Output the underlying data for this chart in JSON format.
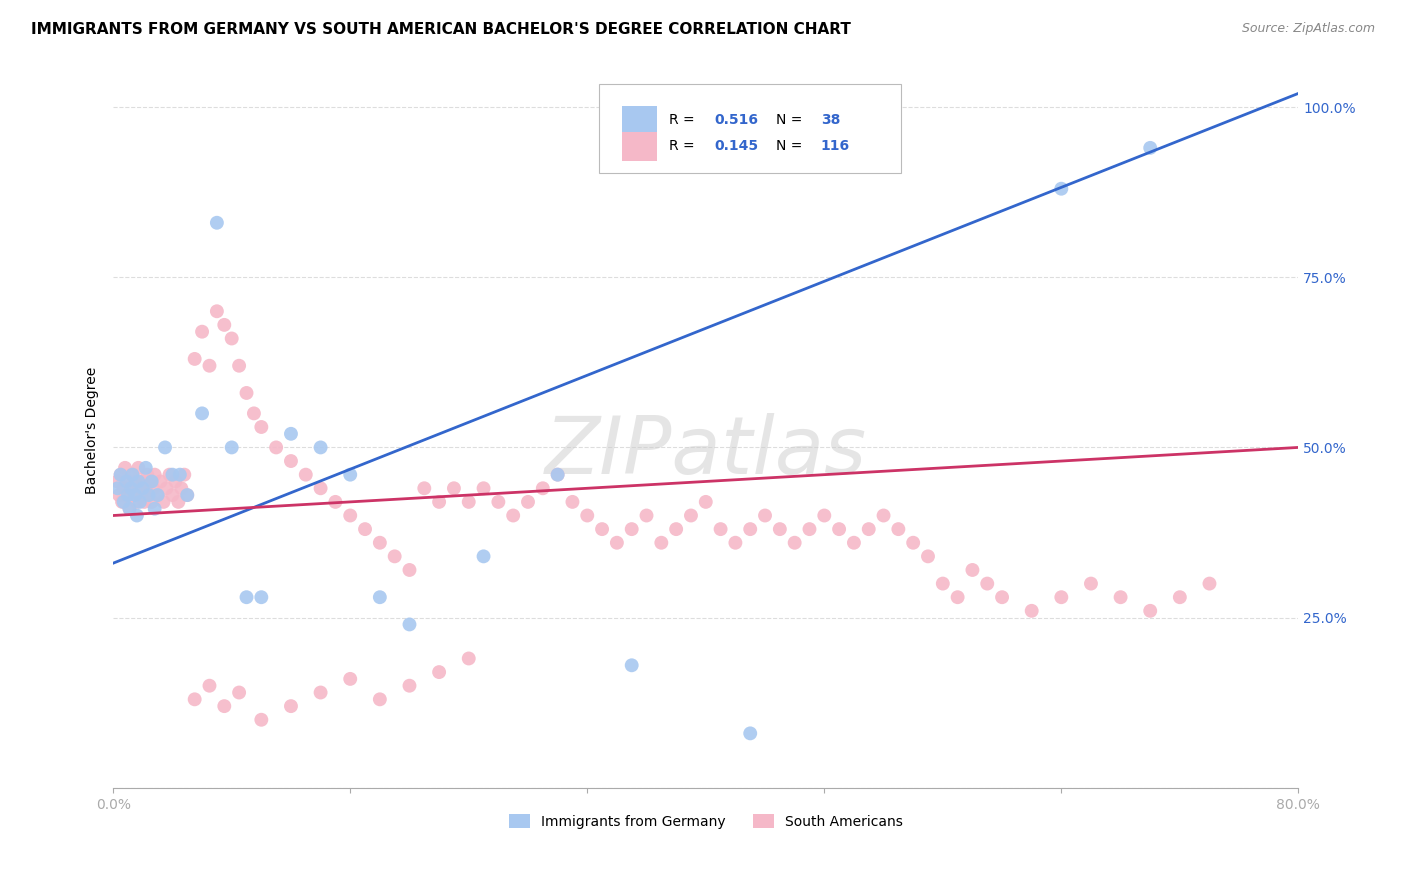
{
  "title": "IMMIGRANTS FROM GERMANY VS SOUTH AMERICAN BACHELOR'S DEGREE CORRELATION CHART",
  "source": "Source: ZipAtlas.com",
  "ylabel": "Bachelor's Degree",
  "legend_labels": [
    "Immigrants from Germany",
    "South Americans"
  ],
  "R_germany": 0.516,
  "N_germany": 38,
  "R_south": 0.145,
  "N_south": 116,
  "color_germany": "#a8c8f0",
  "color_south": "#f5b8c8",
  "line_color_germany": "#3366cc",
  "line_color_south": "#cc3366",
  "tick_color_germany": "#3366cc",
  "background_color": "#ffffff",
  "grid_color": "#dddddd",
  "xlim": [
    0.0,
    0.8
  ],
  "ylim": [
    0.0,
    1.05
  ],
  "x_ticks": [
    0.0,
    0.16,
    0.32,
    0.48,
    0.64,
    0.8
  ],
  "x_tick_labels": [
    "0.0%",
    "",
    "",
    "",
    "",
    "80.0%"
  ],
  "y_ticks": [
    0.0,
    0.25,
    0.5,
    0.75,
    1.0
  ],
  "y_tick_labels": [
    "",
    "25.0%",
    "50.0%",
    "75.0%",
    "100.0%"
  ],
  "germany_line_y0": 0.33,
  "germany_line_y1": 1.02,
  "south_line_y0": 0.4,
  "south_line_y1": 0.5,
  "germany_x": [
    0.003,
    0.005,
    0.007,
    0.009,
    0.01,
    0.011,
    0.012,
    0.013,
    0.015,
    0.016,
    0.017,
    0.018,
    0.02,
    0.022,
    0.024,
    0.026,
    0.028,
    0.03,
    0.035,
    0.04,
    0.045,
    0.05,
    0.06,
    0.07,
    0.08,
    0.09,
    0.1,
    0.12,
    0.14,
    0.16,
    0.18,
    0.2,
    0.25,
    0.3,
    0.35,
    0.43,
    0.64,
    0.7
  ],
  "germany_y": [
    0.44,
    0.46,
    0.42,
    0.45,
    0.43,
    0.41,
    0.44,
    0.46,
    0.43,
    0.4,
    0.45,
    0.42,
    0.44,
    0.47,
    0.43,
    0.45,
    0.41,
    0.43,
    0.5,
    0.46,
    0.46,
    0.43,
    0.55,
    0.83,
    0.5,
    0.28,
    0.28,
    0.52,
    0.5,
    0.46,
    0.28,
    0.24,
    0.34,
    0.46,
    0.18,
    0.08,
    0.88,
    0.94
  ],
  "south_x": [
    0.003,
    0.004,
    0.005,
    0.006,
    0.007,
    0.008,
    0.009,
    0.01,
    0.011,
    0.012,
    0.013,
    0.014,
    0.015,
    0.016,
    0.017,
    0.018,
    0.019,
    0.02,
    0.021,
    0.022,
    0.023,
    0.024,
    0.025,
    0.026,
    0.027,
    0.028,
    0.03,
    0.032,
    0.034,
    0.036,
    0.038,
    0.04,
    0.042,
    0.044,
    0.046,
    0.048,
    0.05,
    0.055,
    0.06,
    0.065,
    0.07,
    0.075,
    0.08,
    0.085,
    0.09,
    0.095,
    0.1,
    0.11,
    0.12,
    0.13,
    0.14,
    0.15,
    0.16,
    0.17,
    0.18,
    0.19,
    0.2,
    0.21,
    0.22,
    0.23,
    0.24,
    0.25,
    0.26,
    0.27,
    0.28,
    0.29,
    0.3,
    0.31,
    0.32,
    0.33,
    0.34,
    0.35,
    0.36,
    0.37,
    0.38,
    0.39,
    0.4,
    0.41,
    0.42,
    0.43,
    0.44,
    0.45,
    0.46,
    0.47,
    0.48,
    0.49,
    0.5,
    0.51,
    0.52,
    0.53,
    0.54,
    0.55,
    0.56,
    0.57,
    0.58,
    0.59,
    0.6,
    0.62,
    0.64,
    0.66,
    0.68,
    0.7,
    0.72,
    0.74,
    0.055,
    0.065,
    0.075,
    0.085,
    0.1,
    0.12,
    0.14,
    0.16,
    0.18,
    0.2,
    0.22,
    0.24
  ],
  "south_y": [
    0.45,
    0.43,
    0.46,
    0.42,
    0.44,
    0.47,
    0.43,
    0.45,
    0.41,
    0.44,
    0.46,
    0.43,
    0.45,
    0.42,
    0.47,
    0.44,
    0.43,
    0.45,
    0.42,
    0.44,
    0.46,
    0.43,
    0.45,
    0.42,
    0.44,
    0.46,
    0.43,
    0.45,
    0.42,
    0.44,
    0.46,
    0.43,
    0.45,
    0.42,
    0.44,
    0.46,
    0.43,
    0.63,
    0.67,
    0.62,
    0.7,
    0.68,
    0.66,
    0.62,
    0.58,
    0.55,
    0.53,
    0.5,
    0.48,
    0.46,
    0.44,
    0.42,
    0.4,
    0.38,
    0.36,
    0.34,
    0.32,
    0.44,
    0.42,
    0.44,
    0.42,
    0.44,
    0.42,
    0.4,
    0.42,
    0.44,
    0.46,
    0.42,
    0.4,
    0.38,
    0.36,
    0.38,
    0.4,
    0.36,
    0.38,
    0.4,
    0.42,
    0.38,
    0.36,
    0.38,
    0.4,
    0.38,
    0.36,
    0.38,
    0.4,
    0.38,
    0.36,
    0.38,
    0.4,
    0.38,
    0.36,
    0.34,
    0.3,
    0.28,
    0.32,
    0.3,
    0.28,
    0.26,
    0.28,
    0.3,
    0.28,
    0.26,
    0.28,
    0.3,
    0.13,
    0.15,
    0.12,
    0.14,
    0.1,
    0.12,
    0.14,
    0.16,
    0.13,
    0.15,
    0.17,
    0.19
  ]
}
